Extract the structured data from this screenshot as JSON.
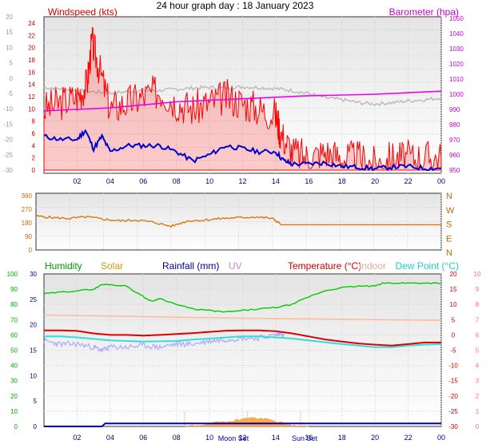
{
  "title": "24 hour graph day : 18 January 2023",
  "x_ticks": [
    "02",
    "04",
    "06",
    "08",
    "10",
    "12",
    "14",
    "16",
    "18",
    "20",
    "22",
    "00"
  ],
  "colors": {
    "wind": "#ff0000",
    "gust_fill": "#ff0000",
    "wind_avg": "#0000cc",
    "barometer": "#ee00ee",
    "grey_line": "#bbbbbb",
    "direction": "#dd7711",
    "humidity": "#00cc00",
    "solar": "#ffaa44",
    "rainfall": "#0000cc",
    "uv": "#cc99cc",
    "temperature": "#dd0000",
    "indoor": "#ffbb99",
    "dew_point": "#33dddd",
    "chill": "#aaaaff"
  },
  "chart_data": [
    {
      "type": "line",
      "labels": {
        "left": "Windspeed (kts)",
        "right": "Barometer (hpa)"
      },
      "left_ticks": [
        "24",
        "22",
        "20",
        "18",
        "16",
        "14",
        "12",
        "10",
        "8",
        "6",
        "4",
        "2",
        "0"
      ],
      "left_outer_ticks": [
        "20",
        "15",
        "10",
        "5",
        "0",
        "-5",
        "-10",
        "-15",
        "-20",
        "-25",
        "-30"
      ],
      "right_ticks": [
        "1050",
        "1040",
        "1030",
        "1020",
        "1010",
        "1000",
        "990",
        "980",
        "970",
        "960",
        "950"
      ],
      "ylim_left": [
        0,
        25
      ],
      "ylim_right": [
        950,
        1050
      ],
      "series": [
        {
          "key": "gust",
          "x": [
            0,
            1,
            2,
            2.6,
            2.9,
            3.3,
            4,
            5,
            6,
            7,
            8,
            9,
            10,
            11,
            12,
            13,
            14,
            14.3,
            15,
            16,
            17,
            18,
            19,
            20,
            21,
            22,
            23,
            24
          ],
          "y": [
            10,
            11,
            12,
            14,
            21,
            17,
            10,
            11,
            12,
            13,
            11,
            10,
            11,
            12,
            11,
            10,
            9,
            6,
            3,
            2,
            3,
            2,
            2,
            1,
            2,
            2,
            2,
            2
          ]
        },
        {
          "key": "wind_avg",
          "x": [
            0,
            1,
            2,
            2.5,
            3,
            3.5,
            4,
            5,
            6,
            7,
            8,
            9,
            10,
            11,
            12,
            13,
            14,
            14.5,
            15,
            16,
            17,
            18,
            19,
            20,
            21,
            22,
            23,
            24
          ],
          "y": [
            5.5,
            5,
            5,
            6.5,
            3.5,
            5.5,
            3,
            4,
            4,
            4,
            3,
            1.5,
            2.5,
            4,
            3.5,
            3,
            3,
            1.5,
            1,
            1,
            1.2,
            0.6,
            0.5,
            0.2,
            0.5,
            0.6,
            0.3,
            0.3
          ]
        },
        {
          "key": "barometer",
          "x": [
            0,
            2,
            4,
            6,
            8,
            10,
            12,
            14,
            16,
            18,
            20,
            22,
            24
          ],
          "y": [
            989,
            990,
            991,
            993,
            995,
            996,
            997,
            998,
            999,
            999.5,
            1000,
            1001,
            1002
          ]
        },
        {
          "key": "grey",
          "x": [
            0,
            1,
            2,
            3,
            4,
            5,
            6,
            7,
            8,
            9,
            10,
            11,
            12,
            13,
            14,
            15,
            16,
            17,
            18,
            19,
            20,
            21,
            22,
            23,
            24
          ],
          "y": [
            13.5,
            13.3,
            13,
            12.8,
            12.6,
            12.8,
            13,
            13,
            13.2,
            13.4,
            13.5,
            13.4,
            13.6,
            13.5,
            13.3,
            13,
            12.5,
            11.8,
            11.5,
            11,
            10.8,
            11,
            11.3,
            11.5,
            11.8
          ]
        }
      ]
    },
    {
      "type": "line",
      "labels": {
        "right": [
          "N",
          "W",
          "S",
          "E",
          "N"
        ]
      },
      "left_ticks": [
        "360",
        "270",
        "180",
        "90",
        "0"
      ],
      "ylim": [
        0,
        360
      ],
      "series": [
        {
          "key": "direction",
          "x": [
            0,
            1,
            2,
            3,
            4,
            5,
            6,
            7,
            8,
            9,
            10,
            11,
            12,
            13,
            14,
            14.5,
            15,
            24
          ],
          "y": [
            215,
            205,
            200,
            210,
            195,
            185,
            190,
            175,
            150,
            185,
            190,
            200,
            205,
            210,
            200,
            165,
            160,
            160
          ]
        }
      ]
    },
    {
      "type": "line",
      "labels": {
        "humidity": "Humidity",
        "solar": "Solar",
        "rainfall": "Rainfall (mm)",
        "uv": "UV",
        "temperature": "Temperature (°C)",
        "indoor": "Indoor",
        "dew_point": "Dew Point (°C)",
        "moon_set": "Moon Set",
        "sun_set": "Sun Set"
      },
      "left_ticks": [
        "100",
        "90",
        "80",
        "70",
        "60",
        "50",
        "40",
        "30",
        "20",
        "10",
        "0"
      ],
      "inner_left_ticks": [
        "30",
        "25",
        "20",
        "15",
        "10",
        "5",
        "0"
      ],
      "right_ticks": [
        "20",
        "15",
        "10",
        "5",
        "0",
        "-5",
        "-10",
        "-15",
        "-20",
        "-25",
        "-30"
      ],
      "outer_right_ticks": [
        "10",
        "9",
        "8",
        "7",
        "6",
        "5",
        "4",
        "3",
        "2",
        "1",
        "0"
      ],
      "ylim_humidity": [
        0,
        100
      ],
      "ylim_temp": [
        -30,
        20
      ],
      "series": [
        {
          "key": "humidity",
          "x": [
            0,
            1,
            2,
            3,
            3.5,
            4,
            5,
            6,
            6.5,
            7,
            8,
            9,
            10,
            11,
            12,
            13,
            14,
            15,
            16,
            17,
            18,
            19,
            20,
            20.5,
            21,
            22,
            23,
            24
          ],
          "y": [
            87,
            88,
            89,
            90,
            93,
            93,
            92,
            85,
            82,
            84,
            80,
            77,
            76,
            75,
            76,
            77,
            78,
            80,
            85,
            89,
            91,
            92,
            92,
            94,
            94,
            94,
            94,
            94
          ]
        },
        {
          "key": "temperature",
          "x": [
            0,
            1,
            2,
            3,
            4,
            5,
            6,
            7,
            8,
            9,
            10,
            11,
            12,
            13,
            14,
            15,
            16,
            17,
            18,
            19,
            20,
            21,
            22,
            23,
            24
          ],
          "y": [
            1.5,
            1.5,
            1.3,
            0.5,
            0,
            0,
            -0.2,
            0,
            0.3,
            0.6,
            1,
            1.4,
            1.5,
            1.5,
            1.2,
            0.5,
            -0.5,
            -1.5,
            -2.2,
            -2.8,
            -3.2,
            -3.5,
            -3,
            -2.5,
            -2.5
          ]
        },
        {
          "key": "dew_point",
          "x": [
            0,
            1,
            2,
            3,
            4,
            5,
            6,
            7,
            8,
            9,
            10,
            11,
            12,
            13,
            14,
            15,
            16,
            17,
            18,
            19,
            20,
            21,
            22,
            23,
            24
          ],
          "y": [
            -0.5,
            -0.5,
            -0.8,
            -1.3,
            -1.8,
            -2,
            -2.2,
            -2.1,
            -2,
            -1.5,
            -1.2,
            -0.8,
            -0.5,
            -0.5,
            -0.8,
            -1.2,
            -1.8,
            -2.4,
            -3,
            -3.5,
            -4,
            -4,
            -3.5,
            -3.2,
            -3
          ]
        },
        {
          "key": "indoor",
          "x": [
            0,
            4,
            8,
            12,
            16,
            20,
            24
          ],
          "y": [
            6.5,
            6.2,
            5.8,
            5.5,
            5.3,
            5,
            4.8
          ]
        },
        {
          "key": "chill",
          "x": [
            0,
            1,
            2,
            3,
            3.5,
            4,
            5,
            6,
            7,
            8,
            9,
            10,
            11,
            12,
            13,
            14,
            14.5
          ],
          "y": [
            -2,
            -3,
            -3,
            -4,
            -5,
            -4,
            -4,
            -3.5,
            -4,
            -3,
            -3,
            -2,
            -1.5,
            -1,
            -1,
            0,
            0.5
          ]
        },
        {
          "key": "rainfall",
          "x": [
            0,
            3.5,
            3.7,
            24
          ],
          "y": [
            0,
            0,
            0.6,
            0.6
          ]
        },
        {
          "key": "solar",
          "x": [
            8.5,
            9.5,
            10.5,
            11.5,
            12,
            12.5,
            13.5,
            14.5,
            15,
            16
          ],
          "y": [
            0,
            0.3,
            0.8,
            1.2,
            1.5,
            1.7,
            1.4,
            0.6,
            0.2,
            0
          ]
        }
      ]
    }
  ]
}
